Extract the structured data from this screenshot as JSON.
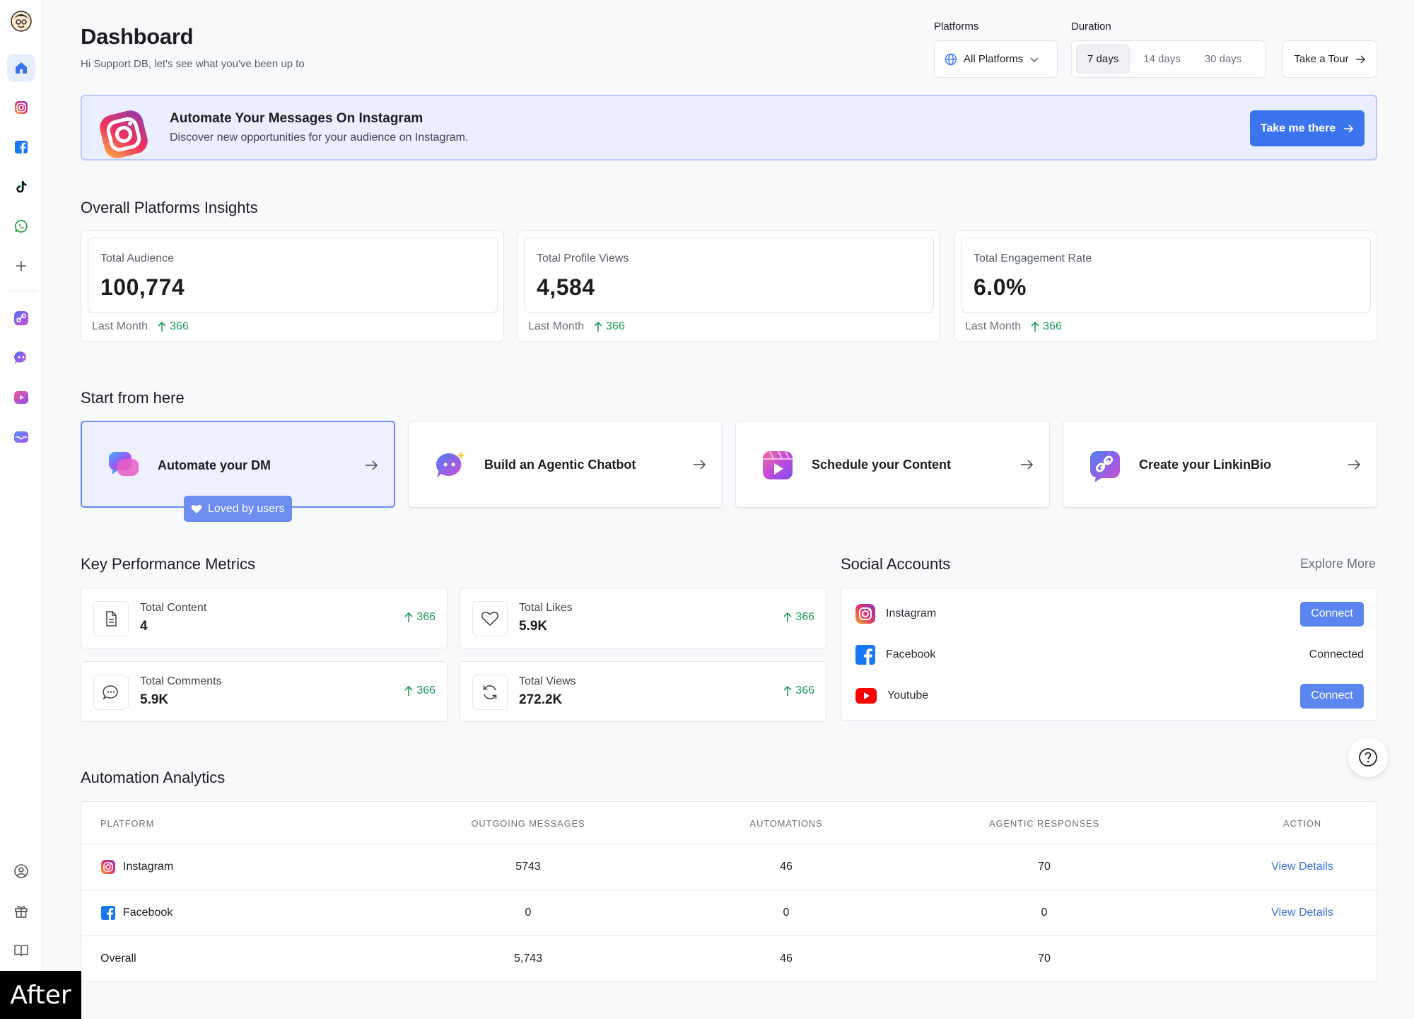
{
  "header": {
    "title": "Dashboard",
    "subtitle": "Hi Support DB, let's see what you've been up to",
    "platforms_label": "Platforms",
    "platform_selected": "All Platforms",
    "duration_label": "Duration",
    "duration_options": [
      "7 days",
      "14 days",
      "30 days"
    ],
    "duration_selected": "7 days",
    "tour_button": "Take a Tour"
  },
  "banner": {
    "title": "Automate Your Messages On Instagram",
    "subtitle": "Discover new opportunities for your audience on Instagram.",
    "button": "Take me there"
  },
  "insights": {
    "title": "Overall Platforms Insights",
    "cards": [
      {
        "label": "Total Audience",
        "value": "100,774",
        "foot": "Last Month",
        "change": "366"
      },
      {
        "label": "Total Profile Views",
        "value": "4,584",
        "foot": "Last Month",
        "change": "366"
      },
      {
        "label": "Total Engagement Rate",
        "value": "6.0%",
        "foot": "Last Month",
        "change": "366"
      }
    ]
  },
  "start": {
    "title": "Start from here",
    "cards": [
      {
        "label": "Automate your DM"
      },
      {
        "label": "Build an Agentic Chatbot"
      },
      {
        "label": "Schedule your Content"
      },
      {
        "label": "Create your LinkinBio"
      }
    ],
    "badge": "Loved by users"
  },
  "kpm": {
    "title": "Key Performance Metrics",
    "items": [
      {
        "label": "Total Content",
        "value": "4",
        "change": "366",
        "icon": "document-icon"
      },
      {
        "label": "Total Likes",
        "value": "5.9K",
        "change": "366",
        "icon": "heart-icon"
      },
      {
        "label": "Total Comments",
        "value": "5.9K",
        "change": "366",
        "icon": "comment-icon"
      },
      {
        "label": "Total Views",
        "value": "272.2K",
        "change": "366",
        "icon": "refresh-icon"
      }
    ]
  },
  "social": {
    "title": "Social Accounts",
    "explore": "Explore More",
    "accounts": [
      {
        "name": "Instagram",
        "action": "Connect"
      },
      {
        "name": "Facebook",
        "status": "Connected"
      },
      {
        "name": "Youtube",
        "action": "Connect"
      }
    ]
  },
  "analytics": {
    "title": "Automation Analytics",
    "columns": [
      "PLATFORM",
      "OUTGOING MESSAGES",
      "AUTOMATIONS",
      "AGENTIC RESPONSES",
      "ACTION"
    ],
    "rows": [
      {
        "platform": "Instagram",
        "outgoing": "5743",
        "automations": "46",
        "agentic": "70",
        "action": "View Details"
      },
      {
        "platform": "Facebook",
        "outgoing": "0",
        "automations": "0",
        "agentic": "0",
        "action": "View Details"
      }
    ],
    "total": {
      "platform": "Overall",
      "outgoing": "5,743",
      "automations": "46",
      "agentic": "70"
    }
  },
  "watermark": "After",
  "colors": {
    "accent": "#3b74ef",
    "positive": "#1b9a57",
    "banner_bg": "#eaeefe",
    "link": "#3b6fe0"
  }
}
